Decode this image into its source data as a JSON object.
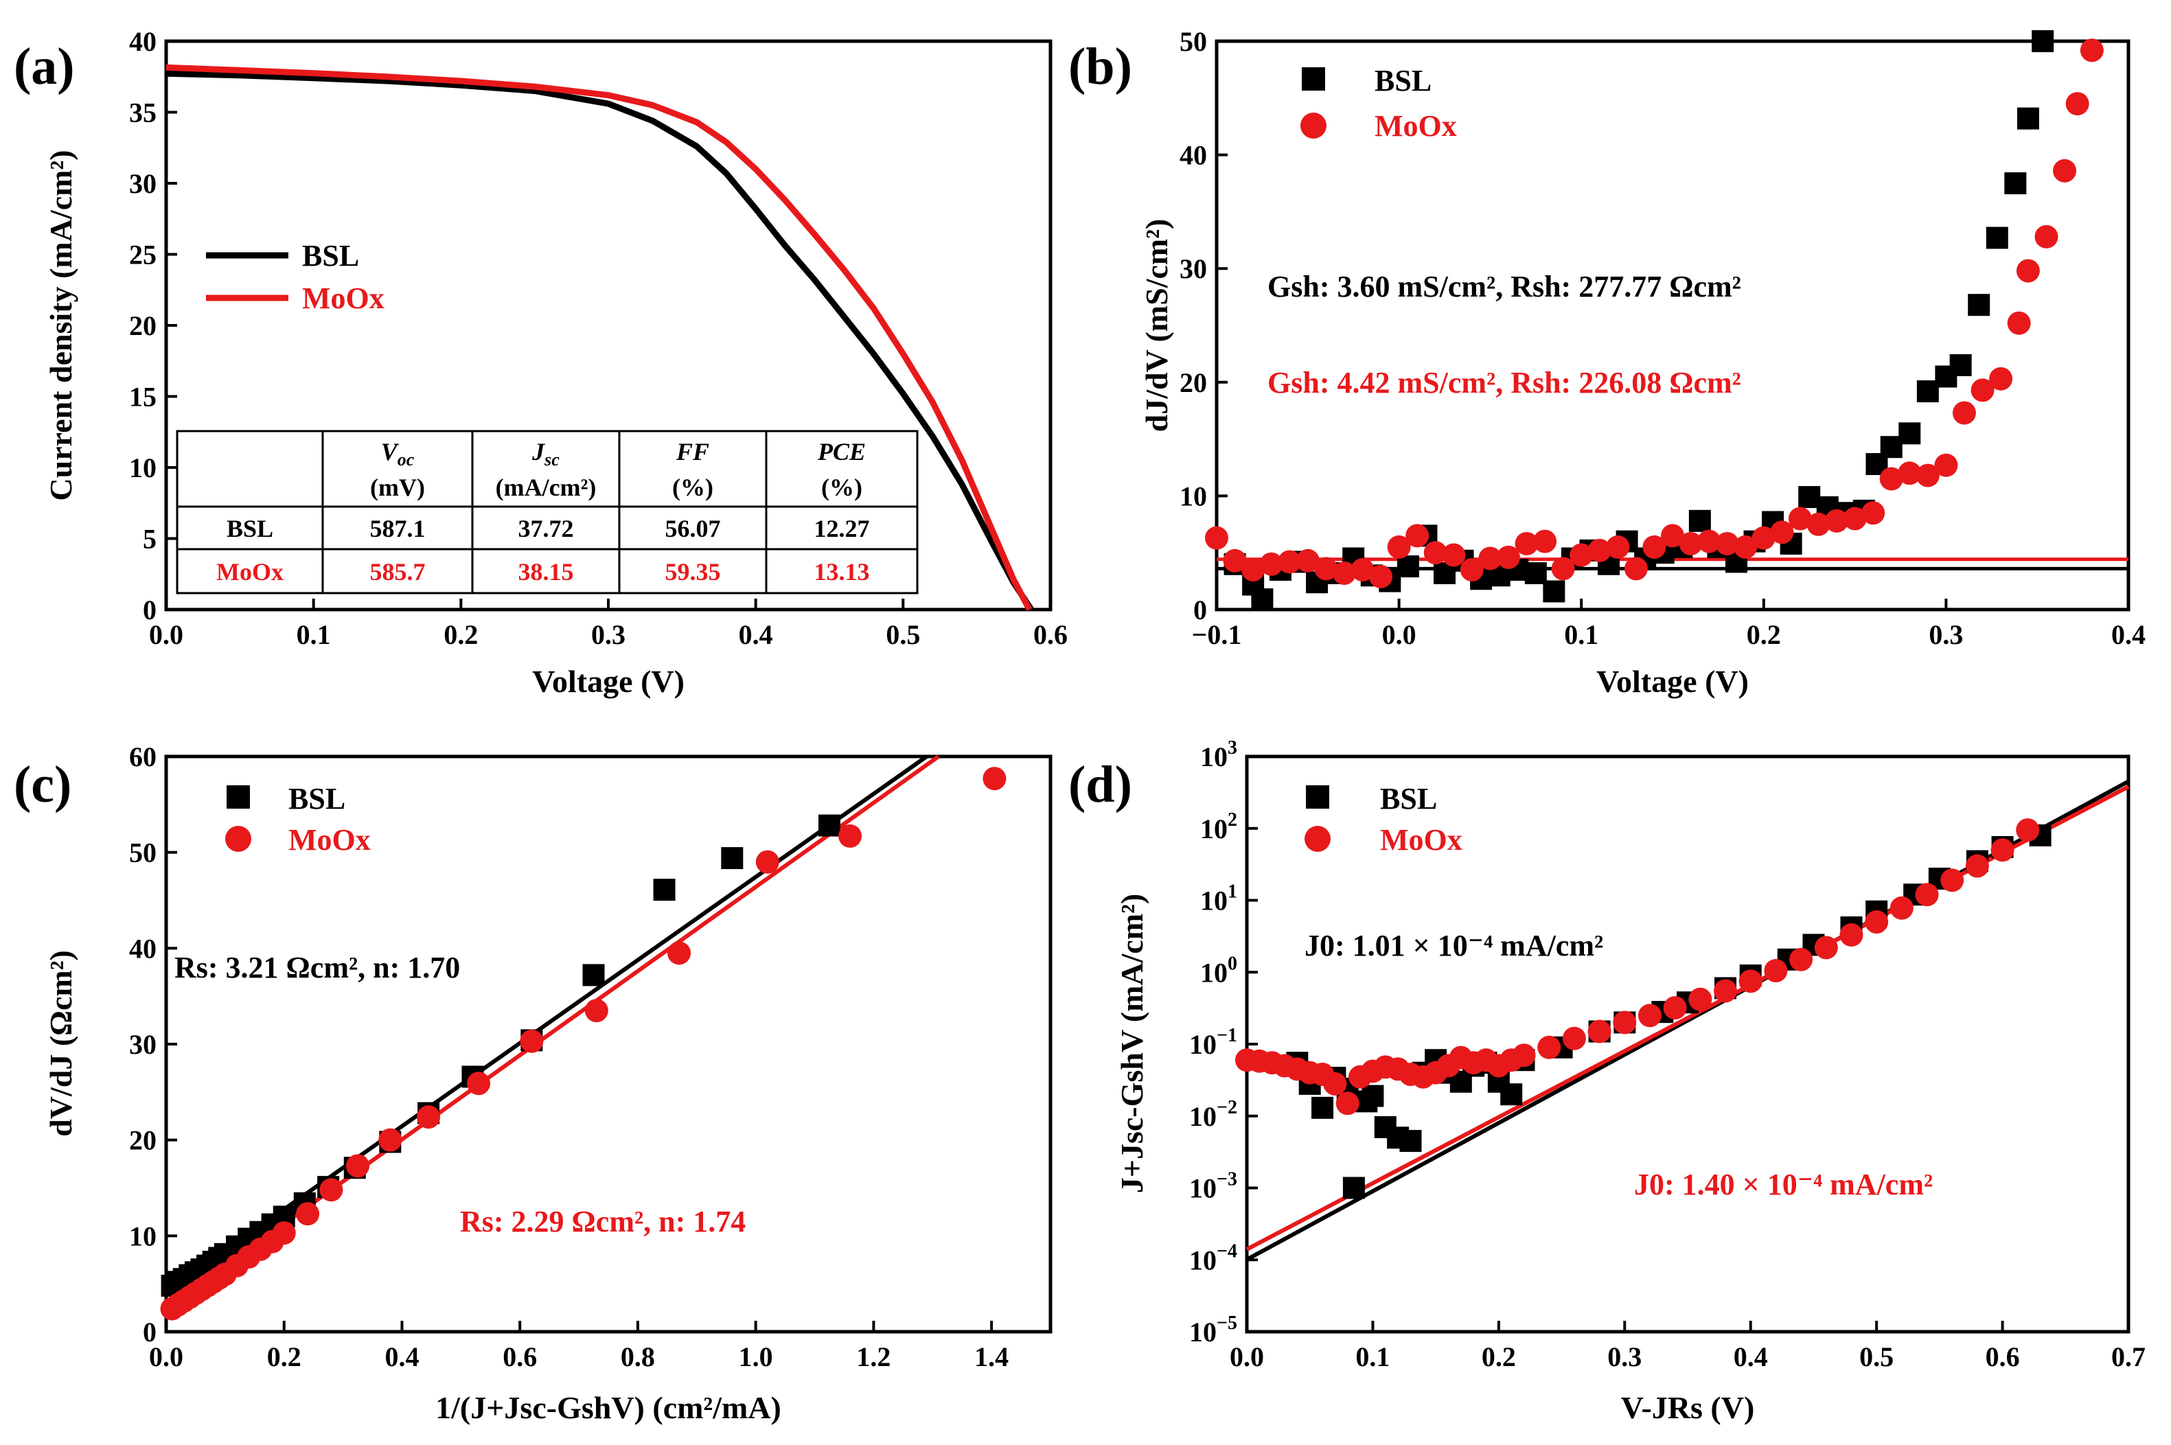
{
  "colors": {
    "bsl": "#000000",
    "moox": "#e8191b"
  },
  "chart_data": [
    {
      "id": "a",
      "type": "line",
      "panel_label": "(a)",
      "xlabel": "Voltage (V)",
      "ylabel": "Current density (mA/cm²)",
      "xlim": [
        0,
        0.6
      ],
      "ylim": [
        0,
        40
      ],
      "xticks": [
        0.0,
        0.1,
        0.2,
        0.3,
        0.4,
        0.5,
        0.6
      ],
      "xtick_labels": [
        "0.0",
        "0.1",
        "0.2",
        "0.3",
        "0.4",
        "0.5",
        "0.6"
      ],
      "yticks": [
        0,
        5,
        10,
        15,
        20,
        25,
        30,
        35,
        40
      ],
      "ytick_labels": [
        "0",
        "5",
        "10",
        "15",
        "20",
        "25",
        "30",
        "35",
        "40"
      ],
      "legend": {
        "position": "left-middle",
        "entries": [
          "BSL",
          "MoOx"
        ]
      },
      "series": [
        {
          "name": "BSL",
          "color": "bsl",
          "style": "line",
          "x": [
            0,
            0.05,
            0.1,
            0.15,
            0.2,
            0.25,
            0.3,
            0.33,
            0.36,
            0.38,
            0.4,
            0.42,
            0.44,
            0.46,
            0.48,
            0.5,
            0.52,
            0.54,
            0.56,
            0.575,
            0.587
          ],
          "y": [
            37.72,
            37.6,
            37.4,
            37.2,
            36.9,
            36.5,
            35.6,
            34.4,
            32.6,
            30.7,
            28.2,
            25.6,
            23.2,
            20.6,
            18.0,
            15.2,
            12.2,
            8.8,
            4.8,
            1.9,
            0
          ]
        },
        {
          "name": "MoOx",
          "color": "moox",
          "style": "line",
          "x": [
            0,
            0.05,
            0.1,
            0.15,
            0.2,
            0.25,
            0.3,
            0.33,
            0.36,
            0.38,
            0.4,
            0.42,
            0.44,
            0.46,
            0.48,
            0.5,
            0.52,
            0.54,
            0.56,
            0.575,
            0.5857
          ],
          "y": [
            38.15,
            37.95,
            37.75,
            37.5,
            37.2,
            36.8,
            36.2,
            35.5,
            34.3,
            32.9,
            31.0,
            28.8,
            26.4,
            23.9,
            21.2,
            18.0,
            14.6,
            10.5,
            5.7,
            2.1,
            0
          ]
        }
      ],
      "table": {
        "headers": [
          {
            "sym": "V",
            "sub": "oc",
            "unit": "(mV)"
          },
          {
            "sym": "J",
            "sub": "sc",
            "unit": "(mA/cm²)"
          },
          {
            "sym": "FF",
            "sub": "",
            "unit": "(%)"
          },
          {
            "sym": "PCE",
            "sub": "",
            "unit": "(%)"
          }
        ],
        "rows": [
          {
            "label": "BSL",
            "color": "bsl",
            "values": [
              "587.1",
              "37.72",
              "56.07",
              "12.27"
            ]
          },
          {
            "label": "MoOx",
            "color": "moox",
            "values": [
              "585.7",
              "38.15",
              "59.35",
              "13.13"
            ]
          }
        ]
      }
    },
    {
      "id": "b",
      "type": "scatter",
      "panel_label": "(b)",
      "xlabel": "Voltage (V)",
      "ylabel": "dJ/dV (mS/cm²)",
      "xlim": [
        -0.1,
        0.4
      ],
      "ylim": [
        0,
        50
      ],
      "xticks": [
        -0.1,
        0.0,
        0.1,
        0.2,
        0.3,
        0.4
      ],
      "xtick_labels": [
        "−0.1",
        "0.0",
        "0.1",
        "0.2",
        "0.3",
        "0.4"
      ],
      "yticks": [
        0,
        10,
        20,
        30,
        40,
        50
      ],
      "ytick_labels": [
        "0",
        "10",
        "20",
        "30",
        "40",
        "50"
      ],
      "legend": {
        "position": "top-left",
        "entries": [
          "BSL",
          "MoOx"
        ]
      },
      "annotations": [
        {
          "color": "bsl",
          "text": "Gsh: 3.60 mS/cm², Rsh: 277.77 Ωcm²"
        },
        {
          "color": "moox",
          "text": "Gsh: 4.42 mS/cm², Rsh: 226.08 Ωcm²"
        }
      ],
      "series": [
        {
          "name": "BSL",
          "color": "bsl",
          "style": "square",
          "x": [
            -0.09,
            -0.08,
            -0.075,
            -0.065,
            -0.055,
            -0.045,
            -0.035,
            -0.025,
            -0.015,
            -0.005,
            0.005,
            0.015,
            0.025,
            0.035,
            0.045,
            0.055,
            0.065,
            0.075,
            0.085,
            0.095,
            0.105,
            0.115,
            0.125,
            0.135,
            0.145,
            0.155,
            0.165,
            0.175,
            0.185,
            0.195,
            0.205,
            0.215,
            0.225,
            0.235,
            0.245,
            0.255,
            0.262,
            0.27,
            0.28,
            0.29,
            0.3,
            0.308,
            0.318,
            0.328,
            0.338,
            0.345,
            0.353
          ],
          "y": [
            4.0,
            2.2,
            0.9,
            3.5,
            4.2,
            2.4,
            3.2,
            4.5,
            3.0,
            2.5,
            3.8,
            6.5,
            3.2,
            4.3,
            2.7,
            3.0,
            3.5,
            3.2,
            1.6,
            4.5,
            5.2,
            4.0,
            6.0,
            4.5,
            5.0,
            5.5,
            7.8,
            5.5,
            4.2,
            6.0,
            7.7,
            5.8,
            9.9,
            9.0,
            8.5,
            8.7,
            12.8,
            14.3,
            15.5,
            19.2,
            20.5,
            21.5,
            26.8,
            32.7,
            37.5,
            43.2,
            50.0
          ]
        },
        {
          "name": "MoOx",
          "color": "moox",
          "style": "circle",
          "x": [
            -0.1,
            -0.09,
            -0.08,
            -0.07,
            -0.06,
            -0.05,
            -0.04,
            -0.03,
            -0.02,
            -0.01,
            0.0,
            0.01,
            0.02,
            0.03,
            0.04,
            0.05,
            0.06,
            0.07,
            0.08,
            0.09,
            0.1,
            0.11,
            0.12,
            0.13,
            0.14,
            0.15,
            0.16,
            0.17,
            0.18,
            0.19,
            0.2,
            0.21,
            0.22,
            0.23,
            0.24,
            0.25,
            0.26,
            0.27,
            0.28,
            0.29,
            0.3,
            0.31,
            0.32,
            0.33,
            0.34,
            0.345,
            0.355,
            0.365,
            0.372,
            0.38
          ],
          "y": [
            6.3,
            4.3,
            3.5,
            4.0,
            4.2,
            4.3,
            3.6,
            3.2,
            3.5,
            2.9,
            5.5,
            6.5,
            5.0,
            4.8,
            3.5,
            4.5,
            4.6,
            5.8,
            6.0,
            3.6,
            4.8,
            5.2,
            5.5,
            3.6,
            5.5,
            6.5,
            5.8,
            6.0,
            5.8,
            5.5,
            6.3,
            6.8,
            8.0,
            7.5,
            7.8,
            8.0,
            8.5,
            11.5,
            12.0,
            11.8,
            12.7,
            17.3,
            19.3,
            20.3,
            25.2,
            29.8,
            32.8,
            38.6,
            44.5,
            49.2
          ]
        }
      ],
      "fits": [
        {
          "color": "bsl",
          "kind": "hline",
          "y": 3.6
        },
        {
          "color": "moox",
          "kind": "hline",
          "y": 4.42
        }
      ]
    },
    {
      "id": "c",
      "type": "scatter",
      "panel_label": "(c)",
      "xlabel": "1/(J+Jsc-GshV) (cm²/mA)",
      "ylabel": "dV/dJ (Ωcm²)",
      "xlim": [
        0,
        1.5
      ],
      "ylim": [
        0,
        60
      ],
      "xticks": [
        0.0,
        0.2,
        0.4,
        0.6,
        0.8,
        1.0,
        1.2,
        1.4
      ],
      "xtick_labels": [
        "0.0",
        "0.2",
        "0.4",
        "0.6",
        "0.8",
        "1.0",
        "1.2",
        "1.4"
      ],
      "yticks": [
        0,
        10,
        20,
        30,
        40,
        50,
        60
      ],
      "ytick_labels": [
        "0",
        "10",
        "20",
        "30",
        "40",
        "50",
        "60"
      ],
      "legend": {
        "position": "top-center",
        "entries": [
          "BSL",
          "MoOx"
        ]
      },
      "annotations": [
        {
          "color": "bsl",
          "text": "Rs: 3.21 Ωcm², n: 1.70"
        },
        {
          "color": "moox",
          "text": "Rs: 2.29 Ωcm², n: 1.74"
        }
      ],
      "series": [
        {
          "name": "BSL",
          "color": "bsl",
          "style": "square",
          "x": [
            0.01,
            0.02,
            0.03,
            0.04,
            0.05,
            0.06,
            0.07,
            0.08,
            0.09,
            0.1,
            0.12,
            0.14,
            0.16,
            0.18,
            0.2,
            0.235,
            0.275,
            0.32,
            0.38,
            0.445,
            0.52,
            0.62,
            0.725,
            0.845,
            0.96,
            1.125
          ],
          "y": [
            4.8,
            5.2,
            5.5,
            5.9,
            6.2,
            6.5,
            6.9,
            7.3,
            7.7,
            8.1,
            8.9,
            9.7,
            10.4,
            11.2,
            12.0,
            13.4,
            15.1,
            17.1,
            19.8,
            22.8,
            26.6,
            30.4,
            37.2,
            46.1,
            49.4,
            52.8
          ]
        },
        {
          "name": "MoOx",
          "color": "moox",
          "style": "circle",
          "x": [
            0.01,
            0.02,
            0.03,
            0.04,
            0.05,
            0.06,
            0.07,
            0.08,
            0.09,
            0.1,
            0.12,
            0.14,
            0.16,
            0.18,
            0.2,
            0.24,
            0.28,
            0.325,
            0.38,
            0.445,
            0.53,
            0.62,
            0.73,
            0.87,
            1.02,
            1.16,
            1.405
          ],
          "y": [
            2.4,
            2.8,
            3.2,
            3.6,
            4.0,
            4.4,
            4.8,
            5.2,
            5.6,
            6.0,
            6.9,
            7.8,
            8.6,
            9.4,
            10.3,
            12.3,
            14.8,
            17.3,
            20.0,
            22.4,
            25.9,
            30.3,
            33.5,
            39.5,
            49.0,
            51.7,
            57.7
          ]
        }
      ],
      "fits": [
        {
          "color": "bsl",
          "kind": "line",
          "x": [
            0,
            1.29
          ],
          "y": [
            4.1,
            60
          ]
        },
        {
          "color": "moox",
          "kind": "line",
          "x": [
            0,
            1.31
          ],
          "y": [
            2.5,
            60
          ]
        }
      ]
    },
    {
      "id": "d",
      "type": "scatter",
      "panel_label": "(d)",
      "xlabel": "V-JRs (V)",
      "ylabel": "J+Jsc-GshV (mA/cm²)",
      "xscale": "linear",
      "yscale": "log",
      "xlim": [
        0,
        0.7
      ],
      "ylim": [
        1e-05,
        1000
      ],
      "xticks": [
        0.0,
        0.1,
        0.2,
        0.3,
        0.4,
        0.5,
        0.6,
        0.7
      ],
      "xtick_labels": [
        "0.0",
        "0.1",
        "0.2",
        "0.3",
        "0.4",
        "0.5",
        "0.6",
        "0.7"
      ],
      "yticks_exp": [
        -5,
        -4,
        -3,
        -2,
        -1,
        0,
        1,
        2,
        3
      ],
      "ytick_labels": [
        "−5",
        "−4",
        "−3",
        "−2",
        "−1",
        "0",
        "1",
        "2",
        "3"
      ],
      "ytick_base": "10",
      "legend": {
        "position": "top-left",
        "entries": [
          "BSL",
          "MoOx"
        ]
      },
      "annotations": [
        {
          "color": "bsl",
          "text": "J0: 1.01 × 10⁻⁴ mA/cm²"
        },
        {
          "color": "moox",
          "text": "J0: 1.40 × 10⁻⁴ mA/cm²"
        }
      ],
      "series": [
        {
          "name": "BSL",
          "color": "bsl",
          "style": "square",
          "x": [
            0.04,
            0.05,
            0.06,
            0.07,
            0.08,
            0.085,
            0.095,
            0.1,
            0.11,
            0.12,
            0.13,
            0.14,
            0.15,
            0.16,
            0.17,
            0.18,
            0.19,
            0.2,
            0.21,
            0.22,
            0.25,
            0.28,
            0.3,
            0.33,
            0.35,
            0.38,
            0.4,
            0.43,
            0.45,
            0.48,
            0.5,
            0.53,
            0.55,
            0.58,
            0.6,
            0.63
          ],
          "y": [
            0.055,
            0.028,
            0.013,
            0.034,
            0.024,
            0.001,
            0.016,
            0.019,
            0.007,
            0.005,
            0.0045,
            0.04,
            0.06,
            0.04,
            0.03,
            0.05,
            0.055,
            0.03,
            0.02,
            0.06,
            0.09,
            0.15,
            0.2,
            0.28,
            0.38,
            0.6,
            0.9,
            1.5,
            2.4,
            4.2,
            7.0,
            12,
            20,
            35,
            55,
            80
          ]
        },
        {
          "name": "MoOx",
          "color": "moox",
          "style": "circle",
          "x": [
            0.0,
            0.01,
            0.02,
            0.03,
            0.04,
            0.05,
            0.06,
            0.07,
            0.08,
            0.09,
            0.1,
            0.11,
            0.12,
            0.13,
            0.14,
            0.15,
            0.16,
            0.17,
            0.18,
            0.19,
            0.2,
            0.21,
            0.22,
            0.24,
            0.26,
            0.28,
            0.3,
            0.32,
            0.34,
            0.36,
            0.38,
            0.4,
            0.42,
            0.44,
            0.46,
            0.48,
            0.5,
            0.52,
            0.54,
            0.56,
            0.58,
            0.6,
            0.62
          ],
          "y": [
            0.06,
            0.058,
            0.055,
            0.05,
            0.045,
            0.04,
            0.038,
            0.028,
            0.015,
            0.035,
            0.042,
            0.048,
            0.045,
            0.038,
            0.035,
            0.04,
            0.05,
            0.065,
            0.055,
            0.06,
            0.05,
            0.06,
            0.07,
            0.09,
            0.12,
            0.15,
            0.2,
            0.25,
            0.32,
            0.42,
            0.55,
            0.75,
            1.05,
            1.5,
            2.2,
            3.3,
            5.0,
            7.8,
            12,
            19,
            30,
            50,
            95
          ]
        }
      ],
      "fits": [
        {
          "color": "bsl",
          "kind": "line",
          "x": [
            0,
            0.7
          ],
          "y": [
            0.000101,
            450
          ]
        },
        {
          "color": "moox",
          "kind": "line",
          "x": [
            0,
            0.7
          ],
          "y": [
            0.00014,
            380
          ]
        }
      ]
    }
  ]
}
